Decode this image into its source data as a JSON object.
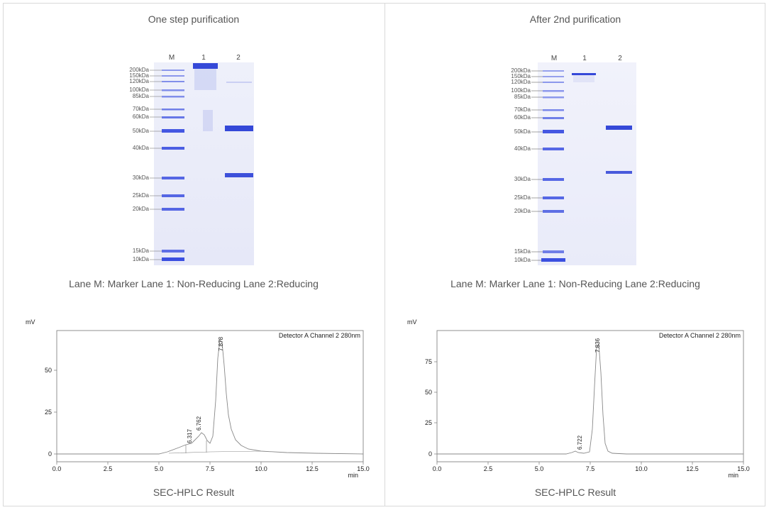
{
  "panels": [
    {
      "title": "One step purification",
      "gel": {
        "lane_headers": [
          "M",
          "1",
          "2"
        ],
        "marker_labels": [
          "200kDa",
          "150kDa",
          "120kDa",
          "100kDa",
          "85kDa",
          "70kDa",
          "60kDa",
          "50kDa",
          "40kDa",
          "30kDa",
          "25kDa",
          "20kDa",
          "15kDa",
          "10kDa"
        ],
        "marker_kda": [
          200,
          150,
          120,
          100,
          85,
          70,
          60,
          50,
          40,
          30,
          25,
          20,
          15,
          10
        ],
        "band_color": "#2a3fd6",
        "lane1_bands_kda": [
          200
        ],
        "lane2_bands_kda": [
          50,
          30
        ]
      },
      "legend": "Lane M: Marker Lane 1: Non-Reducing Lane 2:Reducing",
      "hplc": {
        "y_unit": "mV",
        "x_unit": "min",
        "detector": "Detector A Channel 2 280nm",
        "x_ticks": [
          "0.0",
          "2.5",
          "5.0",
          "7.5",
          "10.0",
          "12.5",
          "15.0"
        ],
        "y_ticks": [
          "0",
          "25",
          "50"
        ],
        "peak_labels": [
          "6.317",
          "6.762",
          "7.878"
        ]
      },
      "caption": "SEC-HPLC Result"
    },
    {
      "title": "After 2nd purification",
      "gel": {
        "lane_headers": [
          "M",
          "1",
          "2"
        ],
        "marker_labels": [
          "200kDa",
          "150kDa",
          "120kDa",
          "100kDa",
          "85kDa",
          "70kDa",
          "60kDa",
          "50kDa",
          "40kDa",
          "30kDa",
          "25kDa",
          "20kDa",
          "15kDa",
          "10kDa"
        ],
        "marker_kda": [
          200,
          150,
          120,
          100,
          85,
          70,
          60,
          50,
          40,
          30,
          25,
          20,
          15,
          10
        ],
        "band_color": "#2a3fd6",
        "lane1_bands_kda": [
          150
        ],
        "lane2_bands_kda": [
          52,
          31
        ]
      },
      "legend": "Lane M: Marker Lane 1: Non-Reducing Lane 2:Reducing",
      "hplc": {
        "y_unit": "mV",
        "x_unit": "min",
        "detector": "Detector A Channel 2 280nm",
        "x_ticks": [
          "0.0",
          "2.5",
          "5.0",
          "7.5",
          "10.0",
          "12.5",
          "15.0"
        ],
        "y_ticks": [
          "0",
          "25",
          "50",
          "75"
        ],
        "peak_labels": [
          "6.722",
          "7.836"
        ]
      },
      "caption": "SEC-HPLC Result"
    }
  ]
}
